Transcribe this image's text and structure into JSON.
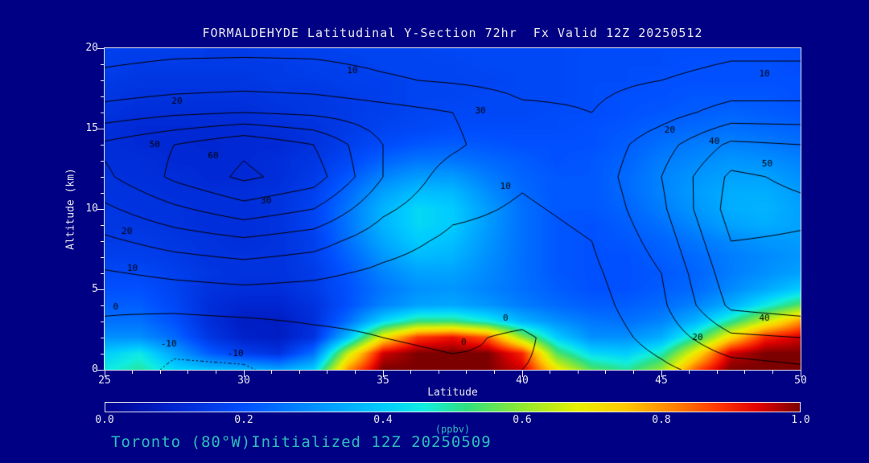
{
  "colors": {
    "background": "#000084",
    "text": "#E9E9F2",
    "accent": "#2EBDBD",
    "contour_line": "#000000",
    "frame": "#E9E9F2"
  },
  "footer": "Toronto (80°W)Initialized 12Z 20250509",
  "chart_data": {
    "type": "heatmap",
    "title": "FORMALDEHYDE Latitudinal Y-Section 72hr  Fx Valid 12Z 20250512",
    "xlabel": "Latitude",
    "ylabel": "Altitude (km)",
    "xlim": [
      25,
      50
    ],
    "ylim": [
      0,
      20
    ],
    "x_ticks": [
      "25",
      "30",
      "35",
      "40",
      "45",
      "50"
    ],
    "y_ticks": [
      "0",
      "5",
      "10",
      "15",
      "20"
    ],
    "colorbar": {
      "label": "(ppbv)",
      "min": 0.0,
      "max": 1.0,
      "ticks": [
        "0.0",
        "0.2",
        "0.4",
        "0.6",
        "0.8",
        "1.0"
      ],
      "stops": [
        [
          0.0,
          "#000090"
        ],
        [
          0.1,
          "#0025D0"
        ],
        [
          0.2,
          "#0050FF"
        ],
        [
          0.3,
          "#0090FF"
        ],
        [
          0.4,
          "#00CCFF"
        ],
        [
          0.46,
          "#10EEE0"
        ],
        [
          0.52,
          "#30E080"
        ],
        [
          0.6,
          "#90E830"
        ],
        [
          0.68,
          "#E8F000"
        ],
        [
          0.75,
          "#FFC800"
        ],
        [
          0.82,
          "#FF8000"
        ],
        [
          0.88,
          "#FF3800"
        ],
        [
          0.94,
          "#E00000"
        ],
        [
          1.0,
          "#7C0000"
        ]
      ]
    },
    "fill": {
      "units": "ppbv",
      "lat_min": 25,
      "lat_max": 50,
      "alt_min": 0,
      "alt_max": 20,
      "ncols": 21,
      "nrows": 21,
      "rows_bottom_to_top": [
        [
          0.45,
          0.5,
          0.42,
          0.38,
          0.36,
          0.33,
          0.4,
          0.8,
          1.0,
          1.0,
          1.0,
          1.0,
          0.95,
          0.7,
          0.55,
          0.5,
          0.6,
          0.85,
          1.0,
          1.0,
          1.0
        ],
        [
          0.4,
          0.45,
          0.33,
          0.22,
          0.16,
          0.13,
          0.25,
          0.65,
          0.95,
          1.0,
          1.0,
          1.0,
          0.9,
          0.55,
          0.42,
          0.4,
          0.48,
          0.7,
          0.95,
          1.0,
          1.0
        ],
        [
          0.3,
          0.3,
          0.24,
          0.14,
          0.09,
          0.08,
          0.13,
          0.38,
          0.7,
          0.88,
          0.92,
          0.85,
          0.6,
          0.4,
          0.3,
          0.3,
          0.35,
          0.5,
          0.72,
          0.9,
          0.95
        ],
        [
          0.25,
          0.25,
          0.2,
          0.12,
          0.08,
          0.08,
          0.12,
          0.25,
          0.42,
          0.52,
          0.52,
          0.46,
          0.36,
          0.3,
          0.26,
          0.25,
          0.28,
          0.36,
          0.5,
          0.65,
          0.8
        ],
        [
          0.22,
          0.22,
          0.18,
          0.12,
          0.1,
          0.1,
          0.13,
          0.2,
          0.28,
          0.33,
          0.34,
          0.31,
          0.27,
          0.24,
          0.22,
          0.22,
          0.24,
          0.28,
          0.35,
          0.45,
          0.55
        ],
        [
          0.2,
          0.2,
          0.17,
          0.13,
          0.12,
          0.12,
          0.15,
          0.2,
          0.26,
          0.3,
          0.31,
          0.28,
          0.25,
          0.22,
          0.2,
          0.2,
          0.22,
          0.24,
          0.29,
          0.34,
          0.4
        ],
        [
          0.18,
          0.18,
          0.16,
          0.14,
          0.13,
          0.13,
          0.15,
          0.21,
          0.28,
          0.33,
          0.33,
          0.29,
          0.25,
          0.21,
          0.2,
          0.2,
          0.21,
          0.23,
          0.27,
          0.3,
          0.33
        ],
        [
          0.16,
          0.16,
          0.15,
          0.13,
          0.13,
          0.13,
          0.16,
          0.23,
          0.31,
          0.37,
          0.36,
          0.3,
          0.25,
          0.21,
          0.2,
          0.2,
          0.22,
          0.24,
          0.27,
          0.29,
          0.31
        ],
        [
          0.15,
          0.15,
          0.14,
          0.13,
          0.12,
          0.13,
          0.16,
          0.25,
          0.34,
          0.4,
          0.38,
          0.31,
          0.25,
          0.21,
          0.2,
          0.21,
          0.23,
          0.26,
          0.29,
          0.31,
          0.32
        ],
        [
          0.14,
          0.14,
          0.13,
          0.12,
          0.12,
          0.13,
          0.17,
          0.26,
          0.36,
          0.42,
          0.4,
          0.32,
          0.25,
          0.21,
          0.2,
          0.22,
          0.25,
          0.29,
          0.33,
          0.35,
          0.33
        ],
        [
          0.14,
          0.13,
          0.13,
          0.12,
          0.12,
          0.13,
          0.17,
          0.26,
          0.36,
          0.42,
          0.4,
          0.32,
          0.25,
          0.21,
          0.21,
          0.23,
          0.27,
          0.31,
          0.35,
          0.36,
          0.33
        ],
        [
          0.13,
          0.13,
          0.12,
          0.12,
          0.12,
          0.13,
          0.16,
          0.24,
          0.33,
          0.38,
          0.37,
          0.3,
          0.24,
          0.21,
          0.21,
          0.24,
          0.28,
          0.32,
          0.35,
          0.35,
          0.32
        ],
        [
          0.13,
          0.12,
          0.12,
          0.11,
          0.11,
          0.12,
          0.15,
          0.21,
          0.28,
          0.32,
          0.32,
          0.27,
          0.23,
          0.21,
          0.21,
          0.24,
          0.28,
          0.31,
          0.33,
          0.33,
          0.3
        ],
        [
          0.12,
          0.12,
          0.11,
          0.11,
          0.11,
          0.12,
          0.14,
          0.18,
          0.23,
          0.26,
          0.26,
          0.24,
          0.22,
          0.2,
          0.21,
          0.23,
          0.27,
          0.29,
          0.31,
          0.3,
          0.28
        ],
        [
          0.12,
          0.11,
          0.11,
          0.1,
          0.11,
          0.11,
          0.13,
          0.16,
          0.19,
          0.21,
          0.22,
          0.21,
          0.2,
          0.2,
          0.2,
          0.22,
          0.25,
          0.27,
          0.28,
          0.27,
          0.25
        ],
        [
          0.12,
          0.11,
          0.11,
          0.11,
          0.11,
          0.12,
          0.13,
          0.15,
          0.17,
          0.18,
          0.19,
          0.19,
          0.19,
          0.19,
          0.2,
          0.21,
          0.23,
          0.24,
          0.25,
          0.24,
          0.23
        ],
        [
          0.13,
          0.12,
          0.12,
          0.12,
          0.12,
          0.13,
          0.14,
          0.15,
          0.16,
          0.17,
          0.18,
          0.18,
          0.18,
          0.19,
          0.19,
          0.2,
          0.21,
          0.22,
          0.23,
          0.22,
          0.21
        ],
        [
          0.14,
          0.13,
          0.13,
          0.13,
          0.13,
          0.14,
          0.14,
          0.15,
          0.16,
          0.17,
          0.17,
          0.18,
          0.18,
          0.18,
          0.19,
          0.2,
          0.2,
          0.21,
          0.21,
          0.21,
          0.2
        ],
        [
          0.15,
          0.14,
          0.14,
          0.14,
          0.14,
          0.15,
          0.15,
          0.16,
          0.16,
          0.17,
          0.17,
          0.17,
          0.18,
          0.18,
          0.19,
          0.19,
          0.2,
          0.2,
          0.2,
          0.2,
          0.2
        ],
        [
          0.16,
          0.15,
          0.15,
          0.15,
          0.15,
          0.15,
          0.16,
          0.16,
          0.17,
          0.17,
          0.17,
          0.18,
          0.18,
          0.18,
          0.19,
          0.19,
          0.19,
          0.2,
          0.2,
          0.2,
          0.19
        ],
        [
          0.16,
          0.16,
          0.16,
          0.15,
          0.15,
          0.16,
          0.16,
          0.17,
          0.17,
          0.17,
          0.18,
          0.18,
          0.18,
          0.18,
          0.19,
          0.19,
          0.19,
          0.19,
          0.19,
          0.19,
          0.19
        ]
      ]
    },
    "contours": {
      "levels": [
        -10,
        0,
        10,
        20,
        30,
        40,
        50,
        60
      ],
      "negative_style": "dotted",
      "lat_min": 25,
      "lat_max": 50,
      "alt_min": 0,
      "alt_max": 20,
      "ncols": 11,
      "nrows": 11,
      "rows_bottom_to_top": [
        [
          -2,
          -12,
          -11,
          -5,
          -2,
          -1,
          0,
          2,
          8,
          15,
          18
        ],
        [
          -2,
          -6,
          -5,
          -2,
          0,
          1,
          -1,
          4,
          14,
          28,
          30
        ],
        [
          1,
          2,
          3,
          3,
          3,
          3,
          3,
          6,
          18,
          42,
          45
        ],
        [
          9,
          12,
          14,
          12,
          8,
          5,
          5,
          8,
          20,
          46,
          48
        ],
        [
          18,
          24,
          28,
          24,
          14,
          8,
          7,
          10,
          24,
          50,
          49
        ],
        [
          28,
          38,
          46,
          40,
          22,
          12,
          9,
          12,
          28,
          54,
          52
        ],
        [
          38,
          52,
          62,
          55,
          30,
          15,
          11,
          14,
          30,
          52,
          48
        ],
        [
          42,
          50,
          58,
          50,
          30,
          22,
          12,
          13,
          26,
          42,
          40
        ],
        [
          24,
          28,
          30,
          28,
          24,
          20,
          12,
          10,
          16,
          24,
          24
        ],
        [
          12,
          14,
          15,
          14,
          11,
          9,
          7,
          8,
          10,
          13,
          13
        ],
        [
          7,
          8,
          8,
          8,
          7,
          6,
          5,
          5,
          6,
          8,
          8
        ]
      ],
      "labels": [
        {
          "text": "10",
          "lat": 33.9,
          "alt": 18.6
        },
        {
          "text": "10",
          "lat": 48.7,
          "alt": 18.4
        },
        {
          "text": "20",
          "lat": 27.6,
          "alt": 16.7
        },
        {
          "text": "30",
          "lat": 38.5,
          "alt": 16.1
        },
        {
          "text": "20",
          "lat": 45.3,
          "alt": 14.9
        },
        {
          "text": "50",
          "lat": 26.8,
          "alt": 14.0
        },
        {
          "text": "40",
          "lat": 46.9,
          "alt": 14.2
        },
        {
          "text": "60",
          "lat": 28.9,
          "alt": 13.3
        },
        {
          "text": "50",
          "lat": 48.8,
          "alt": 12.8
        },
        {
          "text": "10",
          "lat": 39.4,
          "alt": 11.4
        },
        {
          "text": "30",
          "lat": 30.8,
          "alt": 10.5
        },
        {
          "text": "20",
          "lat": 25.8,
          "alt": 8.6
        },
        {
          "text": "10",
          "lat": 26.0,
          "alt": 6.3
        },
        {
          "text": "0",
          "lat": 25.4,
          "alt": 3.9
        },
        {
          "text": "0",
          "lat": 39.4,
          "alt": 3.2
        },
        {
          "text": "-10",
          "lat": 27.3,
          "alt": 1.6
        },
        {
          "text": "-10",
          "lat": 29.7,
          "alt": 1.0
        },
        {
          "text": "0",
          "lat": 37.9,
          "alt": 1.7
        },
        {
          "text": "20",
          "lat": 46.3,
          "alt": 2.0
        },
        {
          "text": "40",
          "lat": 48.7,
          "alt": 3.2
        }
      ]
    }
  }
}
